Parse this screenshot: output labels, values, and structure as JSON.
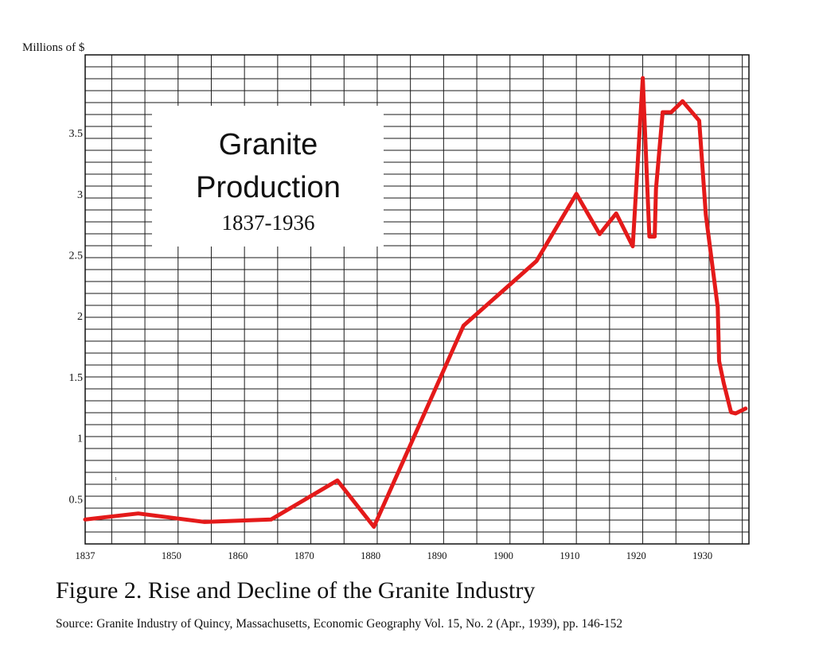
{
  "chart_data": {
    "type": "line",
    "title": "Granite",
    "title_line2": "Production",
    "subtitle": "1837-1936",
    "ylabel": "Millions of $",
    "xlabel": "",
    "xlim": [
      1837,
      1937
    ],
    "ylim": [
      0,
      4.0
    ],
    "grid": true,
    "x_ticks": [
      1837,
      1850,
      1860,
      1870,
      1880,
      1890,
      1900,
      1910,
      1920,
      1930
    ],
    "y_ticks": [
      0.5,
      1,
      1.5,
      2,
      2.5,
      3,
      3.5
    ],
    "y_tick_labels": [
      "0.5",
      "1",
      "1.5",
      "2",
      "2.5",
      "3",
      "3.5"
    ],
    "stray_mark": "1",
    "series": [
      {
        "name": "",
        "color": "#e41a1a",
        "x": [
          1837,
          1845,
          1855,
          1865,
          1875,
          1880.5,
          1894,
          1905,
          1911,
          1914.5,
          1917,
          1919.5,
          1921,
          1922,
          1922.8,
          1923,
          1924,
          1925.3,
          1927,
          1929.5,
          1930.5,
          1932.3,
          1932.5,
          1933.2,
          1934.3,
          1935,
          1936.5
        ],
        "y": [
          0.33,
          0.38,
          0.31,
          0.33,
          0.65,
          0.27,
          1.92,
          2.45,
          3.0,
          2.67,
          2.84,
          2.57,
          3.95,
          2.65,
          2.65,
          3.04,
          3.67,
          3.67,
          3.76,
          3.6,
          2.83,
          2.07,
          1.63,
          1.45,
          1.21,
          1.2,
          1.24
        ]
      }
    ]
  },
  "caption": "Figure 2. Rise and Decline of the Granite Industry",
  "source": "Source: Granite Industry of Quincy, Massachusetts, Economic Geography Vol. 15, No. 2 (Apr., 1939), pp. 146-152"
}
